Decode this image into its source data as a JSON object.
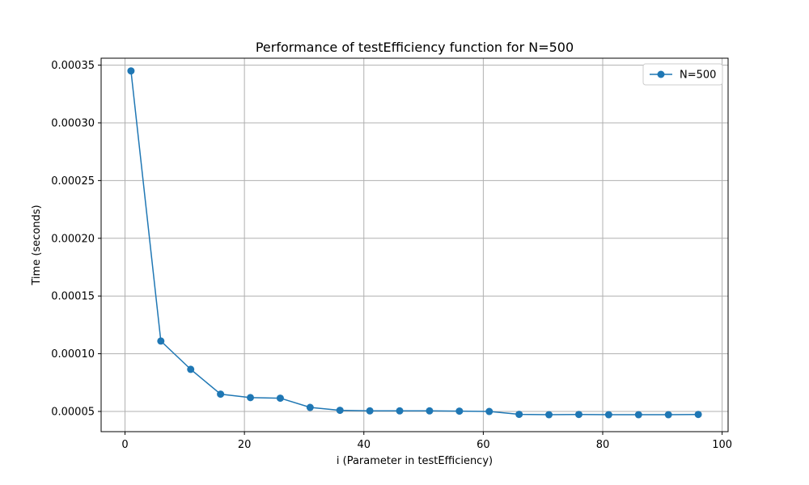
{
  "chart_data": {
    "type": "line",
    "title": "Performance of testEfficiency function for N=500",
    "xlabel": "i (Parameter in testEfficiency)",
    "ylabel": "Time (seconds)",
    "xlim": [
      -4,
      101
    ],
    "ylim": [
      3.25e-05,
      0.000356
    ],
    "xticks": [
      0,
      20,
      40,
      60,
      80,
      100
    ],
    "yticks": [
      5e-05,
      0.0001,
      0.00015,
      0.0002,
      0.00025,
      0.0003,
      0.00035
    ],
    "ytick_labels": [
      "0.00005",
      "0.00010",
      "0.00015",
      "0.00020",
      "0.00025",
      "0.00030",
      "0.00035"
    ],
    "grid": true,
    "legend_position": "top-right",
    "series": [
      {
        "name": "N=500",
        "color": "#1f77b4",
        "marker": "circle",
        "x": [
          1,
          6,
          11,
          16,
          21,
          26,
          31,
          36,
          41,
          46,
          51,
          56,
          61,
          66,
          71,
          76,
          81,
          86,
          91,
          96
        ],
        "values": [
          0.000345,
          0.000111,
          8.65e-05,
          6.5e-05,
          6.2e-05,
          6.15e-05,
          5.35e-05,
          5.1e-05,
          5.05e-05,
          5.05e-05,
          5.05e-05,
          5.03e-05,
          5e-05,
          4.75e-05,
          4.72e-05,
          4.74e-05,
          4.72e-05,
          4.72e-05,
          4.72e-05,
          4.74e-05
        ]
      }
    ]
  }
}
